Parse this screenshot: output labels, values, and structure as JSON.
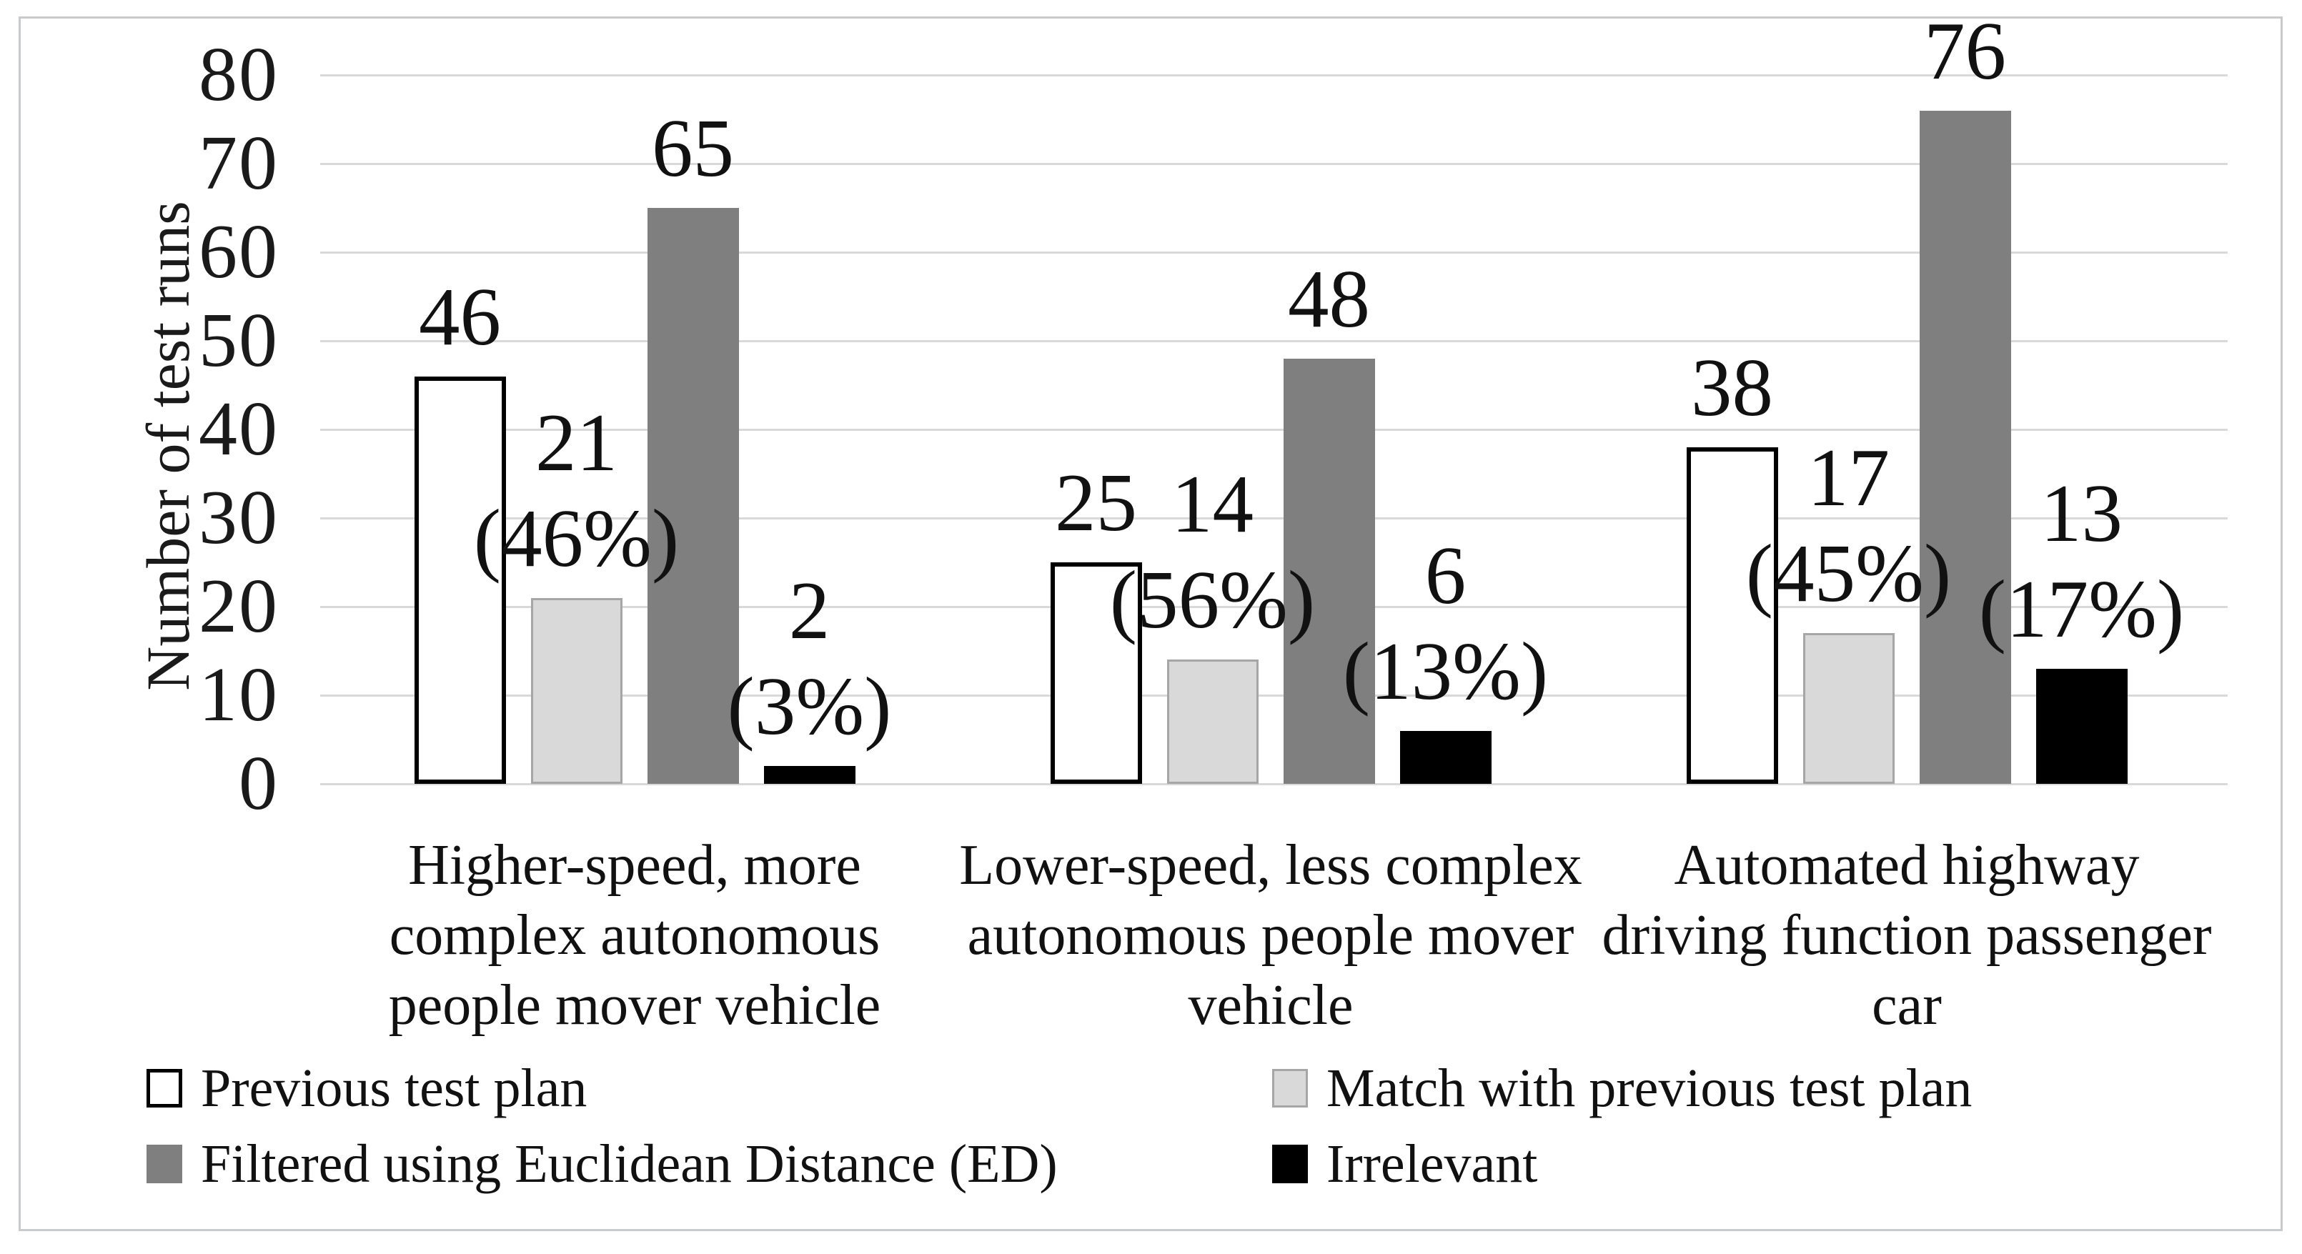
{
  "figure": {
    "background": "#ffffff",
    "border_color": "#c9cacb"
  },
  "y_axis": {
    "title": "Number of test runs",
    "ticks": [
      0,
      10,
      20,
      30,
      40,
      50,
      60,
      70,
      80
    ],
    "min": 0,
    "max": 80,
    "gridline_color": "#d9d9d9"
  },
  "chart_data": {
    "type": "bar",
    "title": "",
    "xlabel": "",
    "ylabel": "Number of test runs",
    "ylim": [
      0,
      80
    ],
    "grid": true,
    "legend_position": "bottom",
    "categories": [
      "Higher-speed, more complex autonomous people mover vehicle",
      "Lower-speed, less complex autonomous people mover vehicle",
      "Automated highway driving function passenger car"
    ],
    "category_label_lines": [
      [
        "Higher-speed, more",
        "complex autonomous",
        "people mover vehicle"
      ],
      [
        "Lower-speed, less complex",
        "autonomous people mover",
        "vehicle"
      ],
      [
        "Automated highway",
        "driving function passenger",
        "car"
      ]
    ],
    "series": [
      {
        "name": "Previous test plan",
        "fill": "#ffffff",
        "border_color": "#000000",
        "border_width": 6,
        "values": [
          46,
          25,
          38
        ],
        "label_lines": [
          [
            "46"
          ],
          [
            "25"
          ],
          [
            "38"
          ]
        ]
      },
      {
        "name": "Match with previous test plan",
        "fill": "#d9d9d9",
        "border_color": "#a6a6a6",
        "border_width": 3,
        "values": [
          21,
          14,
          17
        ],
        "label_lines": [
          [
            "21",
            "(46%)"
          ],
          [
            "14",
            "(56%)"
          ],
          [
            "17",
            "(45%)"
          ]
        ]
      },
      {
        "name": "Filtered using Euclidean Distance (ED)",
        "fill": "#7f7f7f",
        "border_color": "#7f7f7f",
        "border_width": 0,
        "values": [
          65,
          48,
          76
        ],
        "label_lines": [
          [
            "65"
          ],
          [
            "48"
          ],
          [
            "76"
          ]
        ]
      },
      {
        "name": "Irrelevant",
        "fill": "#000000",
        "border_color": "#000000",
        "border_width": 0,
        "values": [
          2,
          6,
          13
        ],
        "label_lines": [
          [
            "2",
            "(3%)"
          ],
          [
            "6",
            "(13%)"
          ],
          [
            "13",
            "(17%)"
          ]
        ]
      }
    ]
  },
  "legend": {
    "items": [
      {
        "label": "Previous test plan",
        "fill": "#ffffff",
        "border_color": "#000000",
        "border_width": 5,
        "col": 0,
        "row": 0
      },
      {
        "label": "Match with previous test plan",
        "fill": "#d9d9d9",
        "border_color": "#a6a6a6",
        "border_width": 3,
        "col": 1,
        "row": 0
      },
      {
        "label": "Filtered using Euclidean Distance (ED)",
        "fill": "#7f7f7f",
        "border_color": "#7f7f7f",
        "border_width": 0,
        "col": 0,
        "row": 1
      },
      {
        "label": "Irrelevant",
        "fill": "#000000",
        "border_color": "#000000",
        "border_width": 0,
        "col": 1,
        "row": 1
      }
    ]
  }
}
